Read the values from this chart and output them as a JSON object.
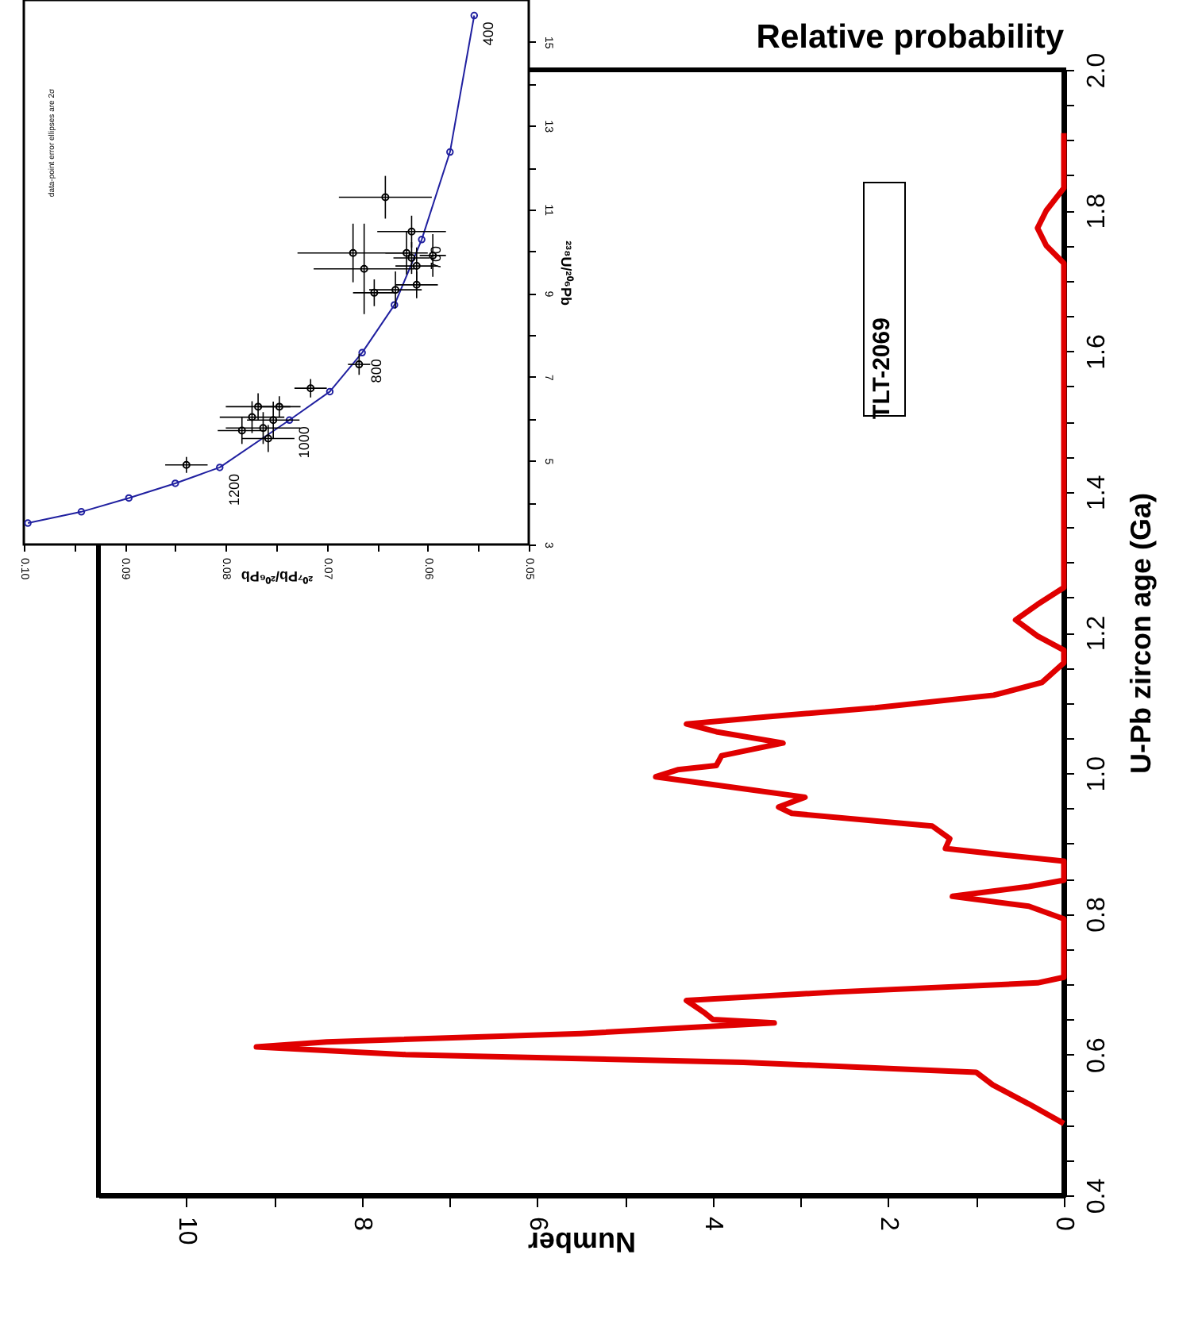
{
  "chart_data": [
    {
      "type": "line",
      "title": "Relative probability",
      "xlabel": "Number",
      "ylabel": "U-Pb zircon age (Ga)",
      "xlim": [
        11,
        0
      ],
      "ylim": [
        0.4,
        2.0
      ],
      "xticks": [
        0,
        {
          "value": 1,
          "label": null
        },
        2,
        {
          "value": 3,
          "label": null
        },
        4,
        {
          "value": 5,
          "label": null
        },
        6,
        {
          "value": 7,
          "label": null
        },
        8,
        {
          "value": 9,
          "label": null
        },
        10
      ],
      "yticks": [
        0.4,
        {
          "value": 0.45,
          "label": null
        },
        {
          "value": 0.5,
          "label": null
        },
        {
          "value": 0.55,
          "label": null
        },
        0.6,
        {
          "value": 0.65,
          "label": null
        },
        {
          "value": 0.7,
          "label": null
        },
        {
          "value": 0.75,
          "label": null
        },
        0.8,
        {
          "value": 0.85,
          "label": null
        },
        {
          "value": 0.9,
          "label": null
        },
        {
          "value": 0.95,
          "label": null
        },
        {
          "value": 1.0,
          "label": "1.0"
        },
        {
          "value": 1.05,
          "label": null
        },
        {
          "value": 1.1,
          "label": null
        },
        {
          "value": 1.15,
          "label": null
        },
        1.2,
        {
          "value": 1.25,
          "label": null
        },
        {
          "value": 1.3,
          "label": null
        },
        {
          "value": 1.35,
          "label": null
        },
        1.4,
        {
          "value": 1.45,
          "label": null
        },
        {
          "value": 1.5,
          "label": null
        },
        {
          "value": 1.55,
          "label": null
        },
        1.6,
        {
          "value": 1.65,
          "label": null
        },
        {
          "value": 1.7,
          "label": null
        },
        {
          "value": 1.75,
          "label": null
        },
        1.8,
        {
          "value": 1.85,
          "label": null
        },
        {
          "value": 1.9,
          "label": null
        },
        {
          "value": 1.95,
          "label": null
        },
        {
          "value": 2.0,
          "label": "2.0"
        }
      ],
      "annotations": [
        "TLT-2069"
      ],
      "series": [
        {
          "color": "#e00000",
          "x": [
            0,
            0.4,
            0.81,
            1.0,
            3.65,
            7.5,
            9.2,
            8.4,
            5.5,
            3.3,
            4.0,
            4.1,
            4.3,
            2.6,
            0.3,
            0,
            0,
            0.4,
            1.27,
            0.4,
            0,
            0,
            0.7,
            1.35,
            1.3,
            1.5,
            3.1,
            3.25,
            2.95,
            4.0,
            4.65,
            4.4,
            3.96,
            3.9,
            3.2,
            3.96,
            4.3,
            3.4,
            2.15,
            0.8,
            0.25,
            0,
            0,
            0.3,
            0.55,
            0.3,
            0,
            0,
            0.2,
            0.3,
            0.2,
            0,
            0
          ],
          "values": [
            0.502,
            0.53,
            0.557,
            0.575,
            0.589,
            0.6,
            0.611,
            0.618,
            0.63,
            0.645,
            0.65,
            0.66,
            0.677,
            0.689,
            0.702,
            0.71,
            0.793,
            0.811,
            0.825,
            0.839,
            0.848,
            0.875,
            0.884,
            0.893,
            0.907,
            0.925,
            0.943,
            0.952,
            0.966,
            0.984,
            0.995,
            1.005,
            1.011,
            1.025,
            1.043,
            1.059,
            1.07,
            1.08,
            1.093,
            1.111,
            1.129,
            1.157,
            1.175,
            1.195,
            1.218,
            1.24,
            1.264,
            1.725,
            1.75,
            1.775,
            1.8,
            1.832,
            1.91
          ]
        }
      ],
      "marker": "none",
      "line_style": "solid",
      "grid": false
    },
    {
      "type": "scatter",
      "xlabel": "²⁰⁷Pb/²⁰⁶Pb",
      "ylabel": "²³⁸U/²⁰⁶Pb",
      "xlim": [
        0.1,
        0.05
      ],
      "ylim": [
        3,
        16
      ],
      "xticks": [
        {
          "value": 0.1,
          "label": "0.10"
        },
        {
          "value": 0.095,
          "label": null
        },
        0.09,
        {
          "value": 0.085,
          "label": null
        },
        0.08,
        {
          "value": 0.075,
          "label": null
        },
        0.07,
        {
          "value": 0.065,
          "label": null
        },
        0.06,
        {
          "value": 0.055,
          "label": null
        },
        0.05
      ],
      "yticks": [
        3,
        {
          "value": 4,
          "label": null
        },
        5,
        {
          "value": 6,
          "label": null
        },
        7,
        {
          "value": 8,
          "label": null
        },
        9,
        {
          "value": 10,
          "label": null
        },
        11,
        {
          "value": 12,
          "label": null
        },
        13,
        {
          "value": 14,
          "label": null
        },
        15
      ],
      "annotations": [
        "data-point error ellipses are 2σ",
        {
          "text": "400",
          "x": 0.0554,
          "y": 15.63
        },
        {
          "text": "700",
          "x": 0.0606,
          "y": 10.28
        },
        {
          "text": "800",
          "x": 0.0665,
          "y": 7.58
        },
        {
          "text": "1000",
          "x": 0.0737,
          "y": 5.97
        },
        {
          "text": "1200",
          "x": 0.0806,
          "y": 4.84
        }
      ],
      "series": [
        {
          "type": "line",
          "color": "#2020a0",
          "marker": "circle",
          "x": [
            0.0996,
            0.0943,
            0.0896,
            0.085,
            0.0806,
            0.0737,
            0.0697,
            0.0665,
            0.0633,
            0.0606,
            0.0578,
            0.0554
          ],
          "values": [
            3.51,
            3.78,
            4.11,
            4.46,
            4.84,
            5.97,
            6.65,
            7.58,
            8.72,
            10.28,
            12.37,
            15.63
          ]
        },
        {
          "color": "#000000",
          "marker": "circle",
          "x": [
            0.0642,
            0.0674,
            0.0663,
            0.0616,
            0.0621,
            0.0616,
            0.0611,
            0.0632,
            0.0611,
            0.0653,
            0.0595,
            0.0668,
            0.0716,
            0.0768,
            0.0763,
            0.0774,
            0.0753,
            0.0758,
            0.0784,
            0.0747,
            0.0839
          ],
          "values": [
            11.29,
            9.96,
            9.58,
            10.47,
            9.96,
            9.84,
            9.65,
            9.08,
            9.2,
            9.01,
            9.9,
            7.3,
            6.73,
            6.29,
            5.78,
            6.04,
            5.97,
            5.53,
            5.72,
            6.29,
            4.9
          ],
          "xerrors": [
            0.0046,
            0.0055,
            0.005,
            0.0034,
            0.0021,
            0.0018,
            0.0021,
            0.0026,
            0.0021,
            0.0021,
            0.0013,
            0.0011,
            0.0016,
            0.0032,
            0.0037,
            0.0032,
            0.0026,
            0.0026,
            0.0024,
            0.0021,
            0.0021
          ],
          "errors": [
            0.51,
            0.7,
            1.08,
            0.38,
            0.51,
            0.38,
            0.44,
            0.44,
            0.32,
            0.32,
            0.51,
            0.25,
            0.22,
            0.32,
            0.38,
            0.38,
            0.44,
            0.32,
            0.32,
            0.25,
            0.19
          ]
        }
      ],
      "grid": false
    }
  ]
}
